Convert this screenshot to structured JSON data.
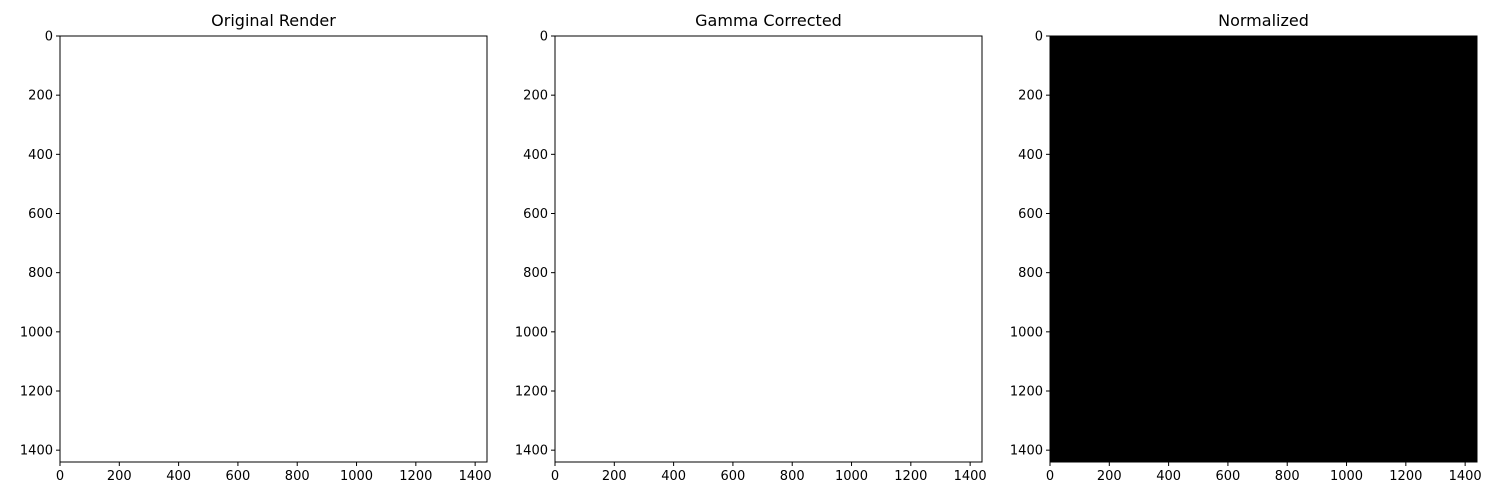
{
  "chart_data": [
    {
      "type": "heatmap",
      "title": "Original Render",
      "image_fill": "#ffffff",
      "xlim": [
        0,
        1440
      ],
      "ylim": [
        1440,
        0
      ],
      "x_ticks": [
        0,
        200,
        400,
        600,
        800,
        1000,
        1200,
        1400
      ],
      "y_ticks": [
        0,
        200,
        400,
        600,
        800,
        1000,
        1200,
        1400
      ],
      "xlabel": "",
      "ylabel": ""
    },
    {
      "type": "heatmap",
      "title": "Gamma Corrected",
      "image_fill": "#ffffff",
      "xlim": [
        0,
        1440
      ],
      "ylim": [
        1440,
        0
      ],
      "x_ticks": [
        0,
        200,
        400,
        600,
        800,
        1000,
        1200,
        1400
      ],
      "y_ticks": [
        0,
        200,
        400,
        600,
        800,
        1000,
        1200,
        1400
      ],
      "xlabel": "",
      "ylabel": ""
    },
    {
      "type": "heatmap",
      "title": "Normalized",
      "image_fill": "#000000",
      "xlim": [
        0,
        1440
      ],
      "ylim": [
        1440,
        0
      ],
      "x_ticks": [
        0,
        200,
        400,
        600,
        800,
        1000,
        1200,
        1400
      ],
      "y_ticks": [
        0,
        200,
        400,
        600,
        800,
        1000,
        1200,
        1400
      ],
      "xlabel": "",
      "ylabel": ""
    }
  ]
}
